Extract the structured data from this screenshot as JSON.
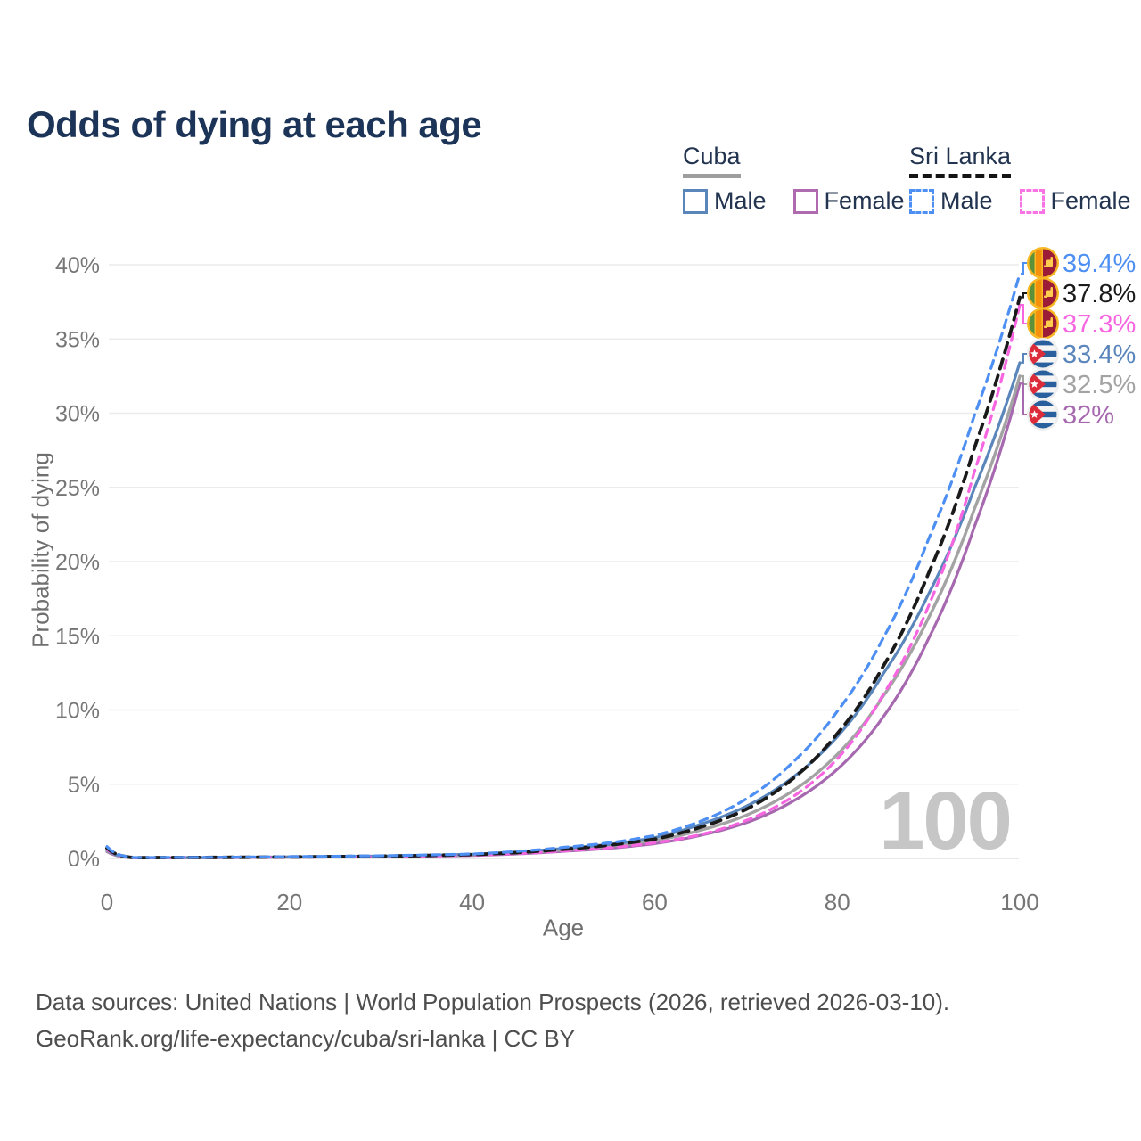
{
  "title": "Odds of dying at each age",
  "legend": {
    "groups": [
      {
        "label": "Cuba",
        "line_style": "solid",
        "line_color": "#9e9e9e",
        "items": [
          {
            "label": "Male",
            "color": "#5b86bb",
            "dash": false
          },
          {
            "label": "Female",
            "color": "#b06ab0",
            "dash": false
          }
        ]
      },
      {
        "label": "Sri Lanka",
        "line_style": "dashed",
        "line_color": "#141414",
        "items": [
          {
            "label": "Male",
            "color": "#4d8ff2",
            "dash": true
          },
          {
            "label": "Female",
            "color": "#f973e4",
            "dash": true
          }
        ]
      }
    ]
  },
  "chart_data": {
    "type": "line",
    "title": "Odds of dying at each age",
    "xlabel": "Age",
    "ylabel": "Probability of dying",
    "xlim": [
      0,
      100
    ],
    "ylim_pct": [
      0,
      40
    ],
    "grid": "horizontal",
    "watermark": "100",
    "xticks": [
      {
        "value": 0,
        "label": "0"
      },
      {
        "value": 20,
        "label": "20"
      },
      {
        "value": 40,
        "label": "40"
      },
      {
        "value": 60,
        "label": "60"
      },
      {
        "value": 80,
        "label": "80"
      },
      {
        "value": 100,
        "label": "100"
      }
    ],
    "yticks": [
      {
        "value": 0,
        "label": "0%"
      },
      {
        "value": 5,
        "label": "5%"
      },
      {
        "value": 10,
        "label": "10%"
      },
      {
        "value": 15,
        "label": "15%"
      },
      {
        "value": 20,
        "label": "20%"
      },
      {
        "value": 25,
        "label": "25%"
      },
      {
        "value": 30,
        "label": "30%"
      },
      {
        "value": 35,
        "label": "35%"
      },
      {
        "value": 40,
        "label": "40%"
      }
    ],
    "x_knots": [
      0,
      3,
      10,
      20,
      30,
      40,
      50,
      55,
      60,
      65,
      70,
      75,
      80,
      85,
      90,
      95,
      100
    ],
    "series": [
      {
        "name": "Sri Lanka Male",
        "country": "Sri Lanka",
        "sex": "male",
        "flag": "sri-lanka",
        "color": "#4d8ff2",
        "dash": "9 7",
        "width": 3.2,
        "end_label": "39.4%",
        "values_pct": [
          0.8,
          0.06,
          0.07,
          0.12,
          0.18,
          0.3,
          0.75,
          1.05,
          1.55,
          2.5,
          4.0,
          6.4,
          9.9,
          14.8,
          21.5,
          29.8,
          39.4
        ]
      },
      {
        "name": "Sri Lanka Both sexes",
        "country": "Sri Lanka",
        "sex": "both",
        "flag": "sri-lanka",
        "color": "#1a1a1a",
        "dash": "11 8",
        "width": 3.8,
        "end_label": "37.8%",
        "values_pct": [
          0.7,
          0.055,
          0.065,
          0.1,
          0.15,
          0.26,
          0.62,
          0.9,
          1.3,
          2.1,
          3.3,
          5.3,
          8.4,
          12.9,
          19.2,
          27.6,
          37.8
        ]
      },
      {
        "name": "Sri Lanka Female",
        "country": "Sri Lanka",
        "sex": "female",
        "flag": "sri-lanka",
        "color": "#f766e0",
        "dash": "9 7",
        "width": 3.2,
        "end_label": "37.3%",
        "values_pct": [
          0.6,
          0.05,
          0.06,
          0.09,
          0.13,
          0.22,
          0.5,
          0.72,
          1.05,
          1.6,
          2.55,
          4.1,
          6.7,
          11.0,
          17.0,
          26.0,
          37.3
        ]
      },
      {
        "name": "Cuba Male",
        "country": "Cuba",
        "sex": "male",
        "flag": "cuba",
        "color": "#5b86bb",
        "dash": null,
        "width": 3.2,
        "end_label": "33.4%",
        "values_pct": [
          0.55,
          0.05,
          0.06,
          0.1,
          0.16,
          0.28,
          0.68,
          0.95,
          1.4,
          2.3,
          3.5,
          5.4,
          8.2,
          12.4,
          17.8,
          24.9,
          33.4
        ]
      },
      {
        "name": "Cuba Both sexes",
        "country": "Cuba",
        "sex": "both",
        "flag": "cuba",
        "color": "#a3a3a3",
        "dash": null,
        "width": 3.4,
        "end_label": "32.5%",
        "values_pct": [
          0.5,
          0.045,
          0.055,
          0.09,
          0.14,
          0.24,
          0.58,
          0.82,
          1.2,
          1.9,
          2.9,
          4.5,
          7.0,
          10.9,
          16.2,
          23.5,
          32.5
        ]
      },
      {
        "name": "Cuba Female",
        "country": "Cuba",
        "sex": "female",
        "flag": "cuba",
        "color": "#a668ae",
        "dash": null,
        "width": 3.2,
        "end_label": "32%",
        "values_pct": [
          0.45,
          0.04,
          0.05,
          0.08,
          0.12,
          0.2,
          0.48,
          0.68,
          1.0,
          1.55,
          2.4,
          3.8,
          6.0,
          9.5,
          14.8,
          22.3,
          32.0
        ]
      }
    ],
    "colors": {
      "grid": "#ececec",
      "grid_zero": "#e0e0e0",
      "tick_label": "#767676",
      "watermark": "#c6c6c6"
    }
  },
  "footer": {
    "line1": "Data sources: United Nations | World Population Prospects (2026, retrieved 2026-03-10).",
    "line2": "GeoRank.org/life-expectancy/cuba/sri-lanka | CC BY"
  }
}
